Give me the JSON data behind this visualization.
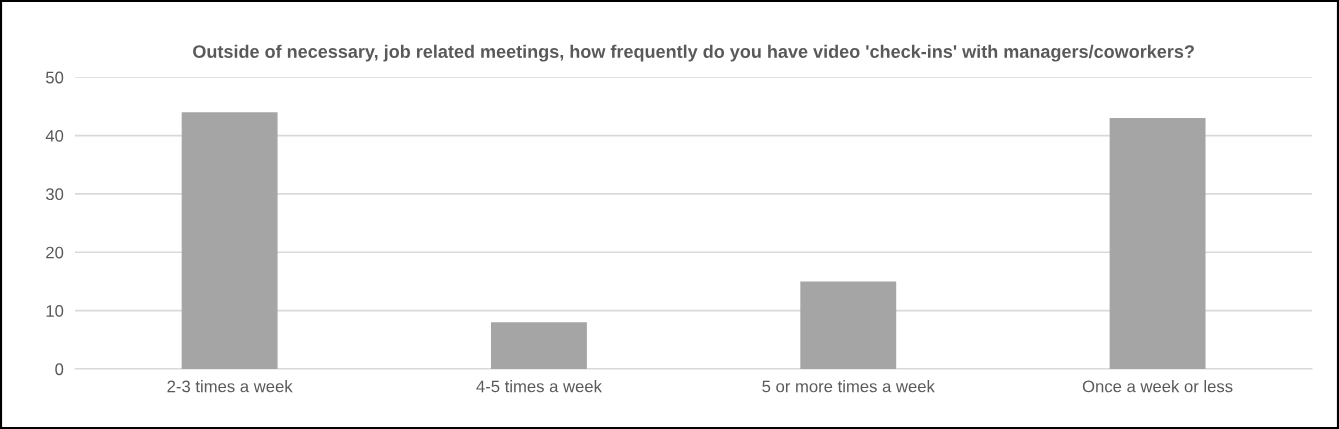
{
  "chart_data": {
    "type": "bar",
    "title": "Outside of necessary, job related meetings, how frequently do you have video 'check-ins' with managers/coworkers?",
    "categories": [
      "2-3 times a week",
      "4-5 times a week",
      "5 or more times a week",
      "Once a week or less"
    ],
    "values": [
      44,
      8,
      15,
      43
    ],
    "color": "#a5a5a5",
    "ylim": [
      0,
      50
    ],
    "yticks": [
      0,
      10,
      20,
      30,
      40,
      50
    ],
    "grid": "y"
  }
}
